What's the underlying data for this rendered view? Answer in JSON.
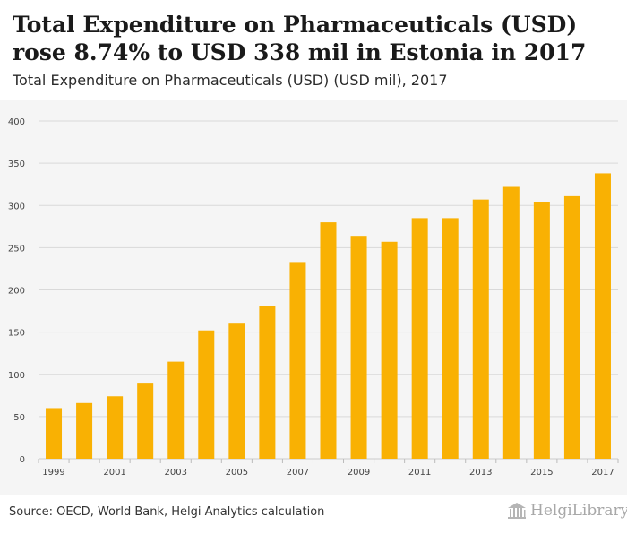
{
  "header": {
    "title": "Total Expenditure on Pharmaceuticals (USD) rose 8.74% to USD 338 mil in Estonia in 2017",
    "subtitle": "Total Expenditure on Pharmaceuticals (USD) (USD mil), 2017"
  },
  "footer": {
    "source": "Source: OECD, World Bank, Helgi Analytics calculation",
    "logo_text": "HelgiLibrary"
  },
  "colors": {
    "bar": "#f9b103",
    "grid": "#d9d9d9",
    "axis_text": "#444444"
  },
  "chart_data": {
    "type": "bar",
    "categories": [
      "1999",
      "2000",
      "2001",
      "2002",
      "2003",
      "2004",
      "2005",
      "2006",
      "2007",
      "2008",
      "2009",
      "2010",
      "2011",
      "2012",
      "2013",
      "2014",
      "2015",
      "2016",
      "2017"
    ],
    "x_tick_labels": [
      "1999",
      "",
      "2001",
      "",
      "2003",
      "",
      "2005",
      "",
      "2007",
      "",
      "2009",
      "",
      "2011",
      "",
      "2013",
      "",
      "2015",
      "",
      "2017"
    ],
    "values": [
      60,
      66,
      74,
      89,
      115,
      152,
      160,
      181,
      233,
      280,
      264,
      257,
      285,
      285,
      307,
      322,
      304,
      311,
      338
    ],
    "ylim": [
      0,
      400
    ],
    "yticks": [
      0,
      50,
      100,
      150,
      200,
      250,
      300,
      350,
      400
    ],
    "grid": true,
    "xlabel": "",
    "ylabel": ""
  }
}
